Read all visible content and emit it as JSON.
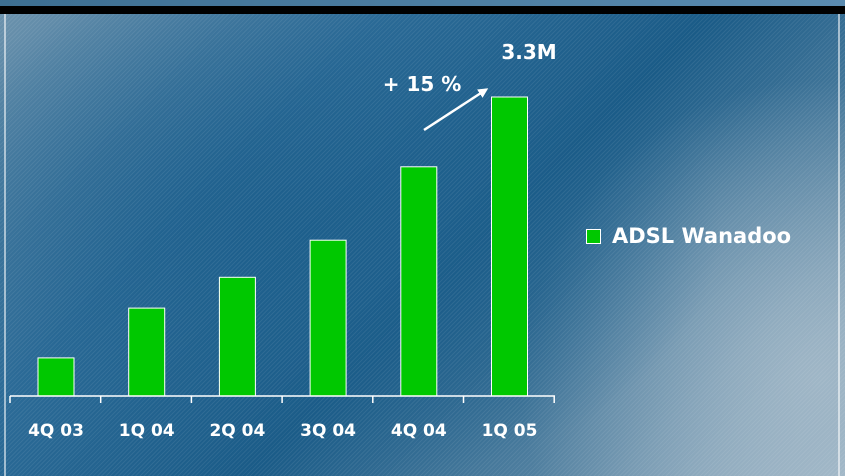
{
  "colors": {
    "bar": "#00c800",
    "text": "#ffffff",
    "background": "#2d6c98"
  },
  "annotations": {
    "growth_label": "+ 15 %",
    "value_label": "3.3M",
    "arrow_icon": "arrow-up-right-icon"
  },
  "legend": {
    "label": "ADSL Wanadoo"
  },
  "chart_data": {
    "type": "bar",
    "categories": [
      "4Q 03",
      "1Q 04",
      "2Q 04",
      "3Q 04",
      "4Q 04",
      "1Q 05"
    ],
    "series": [
      {
        "name": "ADSL Wanadoo",
        "values": [
          0.42,
          0.97,
          1.31,
          1.72,
          2.53,
          3.3
        ]
      }
    ],
    "ylim": [
      0,
      3.3
    ],
    "grid": false,
    "legend_position": "right",
    "annotations": [
      "+ 15 %",
      "3.3M"
    ]
  }
}
